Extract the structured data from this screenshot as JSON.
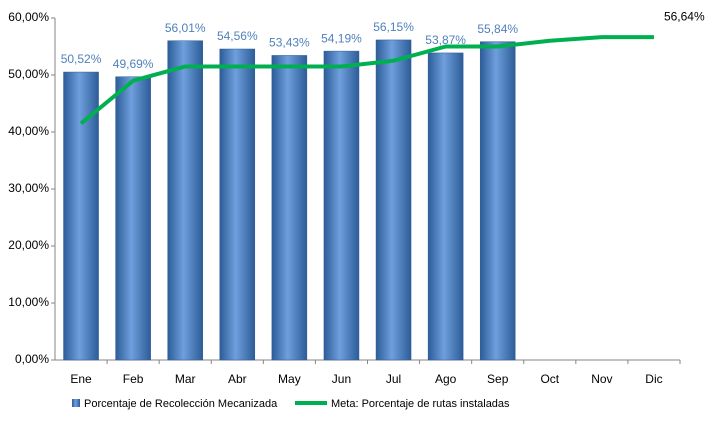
{
  "chart_data": {
    "type": "bar",
    "categories": [
      "Ene",
      "Feb",
      "Mar",
      "Abr",
      "May",
      "Jun",
      "Jul",
      "Ago",
      "Sep",
      "Oct",
      "Nov",
      "Dic"
    ],
    "series": [
      {
        "name": "Porcentaje de Recolección Mecanizada",
        "type": "bar",
        "color": "#4a7ebb",
        "values": [
          50.52,
          49.69,
          56.01,
          54.56,
          53.43,
          54.19,
          56.15,
          53.87,
          55.84,
          null,
          null,
          null
        ],
        "value_labels": [
          "50,52%",
          "49,69%",
          "56,01%",
          "54,56%",
          "53,43%",
          "54,19%",
          "56,15%",
          "53,87%",
          "55,84%",
          null,
          null,
          null
        ]
      },
      {
        "name": "Meta: Porcentaje de rutas instaladas",
        "type": "line",
        "color": "#00b050",
        "values": [
          41.5,
          49,
          51.5,
          51.5,
          51.5,
          51.5,
          52.5,
          55,
          55,
          56,
          56.64,
          56.64
        ],
        "value_labels": [
          null,
          null,
          null,
          null,
          null,
          null,
          null,
          null,
          null,
          null,
          null,
          "56,64%"
        ]
      }
    ],
    "ylim": [
      0,
      60
    ],
    "yticks": [
      {
        "value": 0,
        "label": "0,00%"
      },
      {
        "value": 10,
        "label": "10,00%"
      },
      {
        "value": 20,
        "label": "20,00%"
      },
      {
        "value": 30,
        "label": "30,00%"
      },
      {
        "value": 40,
        "label": "40,00%"
      },
      {
        "value": 50,
        "label": "50,00%"
      },
      {
        "value": 60,
        "label": "60,00%"
      }
    ],
    "grid": false,
    "legend": "bottom"
  }
}
